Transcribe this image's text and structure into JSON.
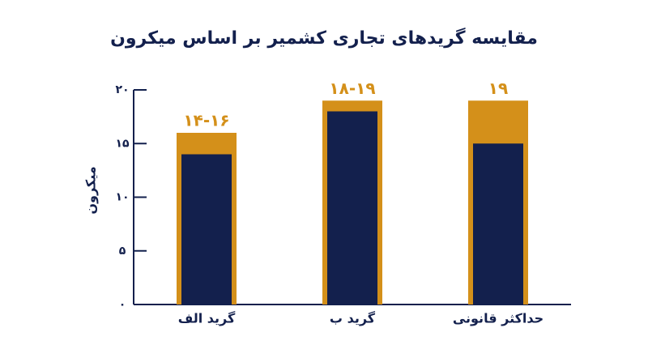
{
  "chart_data": {
    "type": "bar",
    "title": "مقایسه گریدهای تجاری کشمیر بر اساس میکرون",
    "y_label": "میکرون",
    "categories": [
      "گرید الف",
      "گرید ب",
      "حداکثر قانونی"
    ],
    "series": [
      {
        "color": "#d4901a",
        "values": [
          16,
          19,
          19
        ],
        "value_labels": [
          "۱۴-۱۶",
          "۱۸-۱۹",
          "۱۹"
        ]
      },
      {
        "color": "#13204d",
        "values": [
          14,
          18,
          15
        ]
      }
    ],
    "ylim": [
      0,
      20
    ],
    "yticks": [
      {
        "value": 0,
        "label": "۰"
      },
      {
        "value": 5,
        "label": "۵"
      },
      {
        "value": 10,
        "label": "۱۰"
      },
      {
        "value": 15,
        "label": "۱۵"
      },
      {
        "value": 20,
        "label": "۲۰"
      }
    ],
    "grid": false
  }
}
